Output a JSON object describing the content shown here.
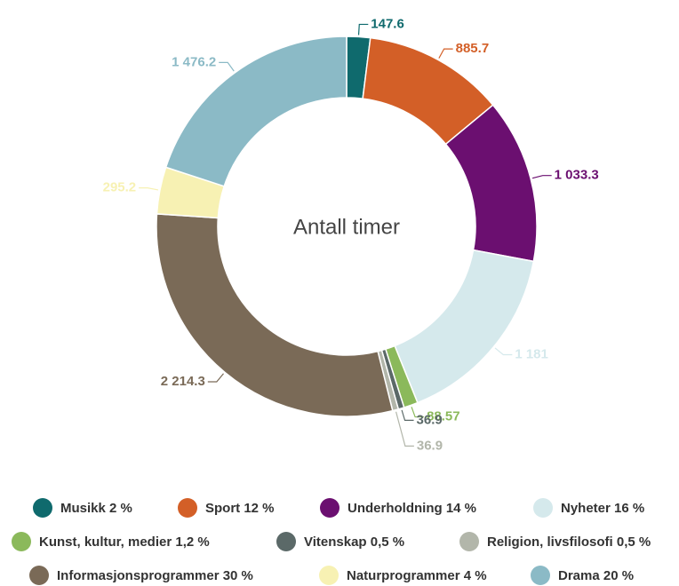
{
  "chart_data": {
    "type": "donut",
    "title": "Antall timer",
    "categories": [
      "Musikk 2 %",
      "Sport 12 %",
      "Underholdning 14 %",
      "Nyheter 16 %",
      "Kunst, kultur, medier 1,2 %",
      "Vitenskap 0,5 %",
      "Religion, livsfilosofi 0,5 %",
      "Informasjonsprogrammer 30 %",
      "Naturprogrammer 4 %",
      "Drama 20 %"
    ],
    "values": [
      147.6,
      885.7,
      1033.3,
      1181,
      88.57,
      36.9,
      36.9,
      2214.3,
      295.2,
      1476.2
    ],
    "value_labels": [
      "147.6",
      "885.7",
      "1 033.3",
      "1 181",
      "88.57",
      "36.9",
      "36.9",
      "2 214.3",
      "295.2",
      "1 476.2"
    ],
    "colors": [
      "#0f6a6d",
      "#d35f27",
      "#6b0f70",
      "#d5e9ec",
      "#8bb95b",
      "#5b6968",
      "#b2b6aa",
      "#7a6a57",
      "#f7f1b3",
      "#8bbac6"
    ]
  }
}
